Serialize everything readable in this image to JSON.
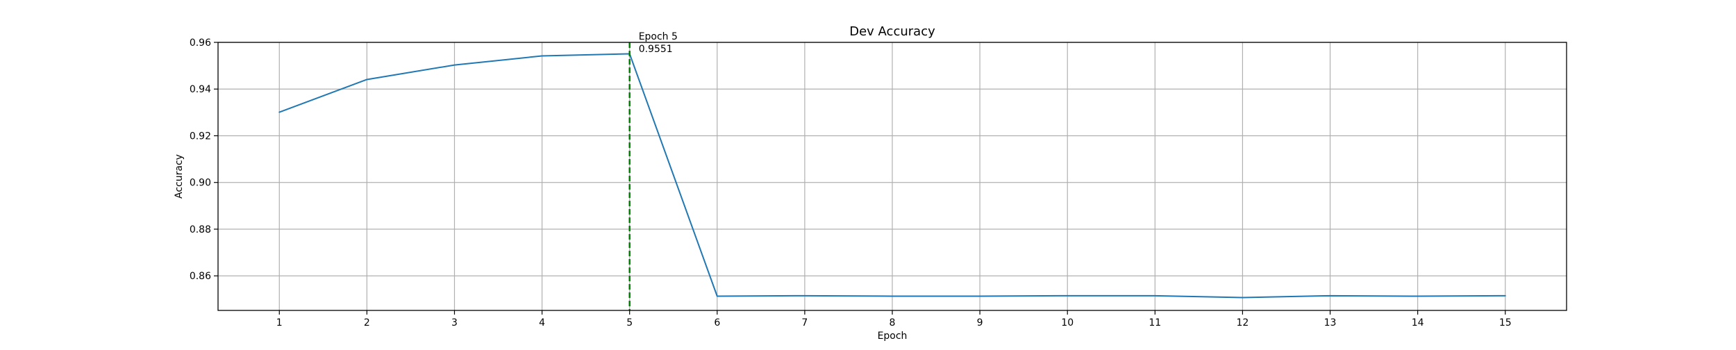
{
  "chart_data": {
    "type": "line",
    "title": "Dev Accuracy",
    "xlabel": "Epoch",
    "ylabel": "Accuracy",
    "x": [
      1,
      2,
      3,
      4,
      5,
      6,
      7,
      8,
      9,
      10,
      11,
      12,
      13,
      14,
      15
    ],
    "series": [
      {
        "values": [
          0.9301,
          0.9441,
          0.9503,
          0.9542,
          0.9551,
          0.8513,
          0.8515,
          0.8513,
          0.8513,
          0.8515,
          0.8515,
          0.8507,
          0.8515,
          0.8513,
          0.8515
        ],
        "color": "#1f77b4"
      }
    ],
    "xlim": [
      0.3,
      15.7
    ],
    "ylim": [
      0.8452,
      0.96
    ],
    "xticks": [
      "1",
      "2",
      "3",
      "4",
      "5",
      "6",
      "7",
      "8",
      "9",
      "10",
      "11",
      "12",
      "13",
      "14",
      "15"
    ],
    "yticks": [
      "0.86",
      "0.88",
      "0.90",
      "0.92",
      "0.94",
      "0.96"
    ],
    "grid": true,
    "best_marker": {
      "x": 5,
      "color": "#008000",
      "style": "dashed",
      "label_line1": "Epoch 5",
      "label_line2": "0.9551"
    }
  }
}
